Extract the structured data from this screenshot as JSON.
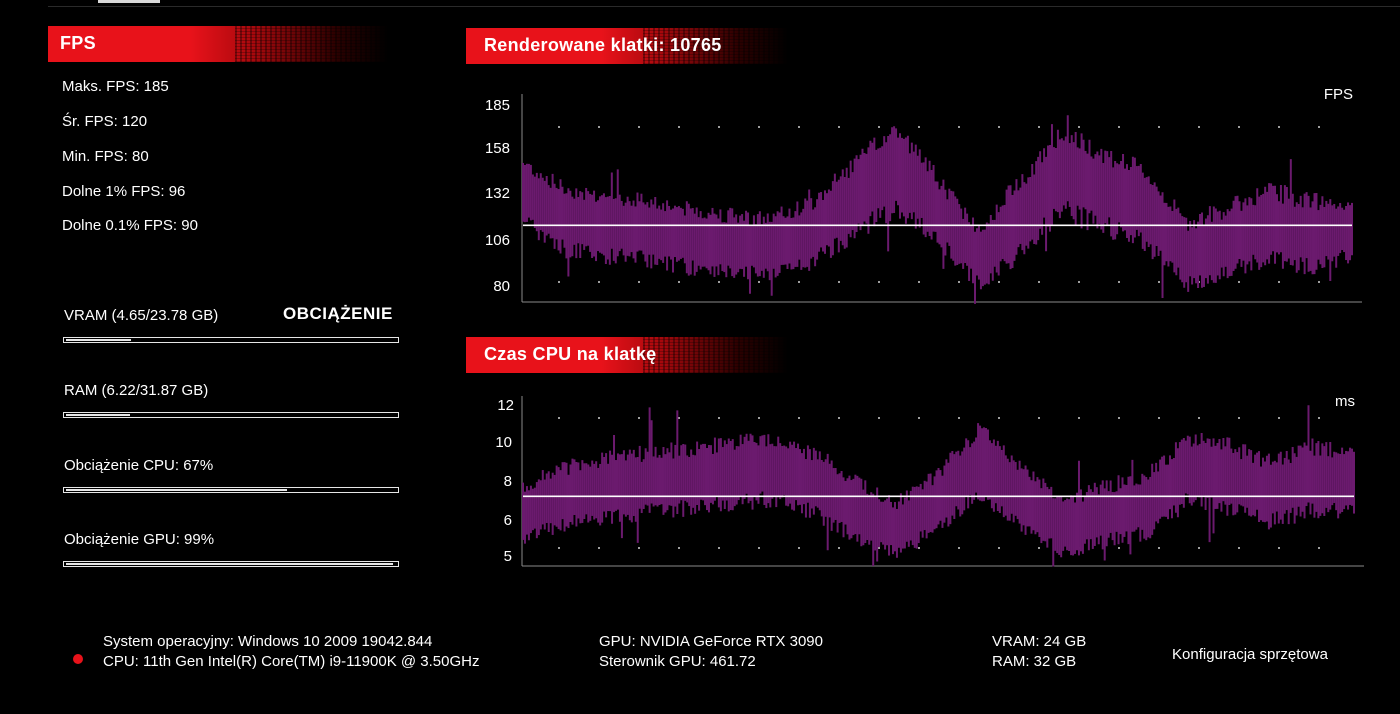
{
  "left": {
    "fps_header": "FPS",
    "stats": [
      "Maks. FPS: 185",
      "Śr. FPS: 120",
      "Min. FPS: 80",
      "Dolne 1% FPS: 96",
      "Dolne 0.1% FPS: 90"
    ],
    "load_title": "OBCIĄŻENIE",
    "bars": [
      {
        "label": "VRAM (4.65/23.78 GB)",
        "fraction": 0.196
      },
      {
        "label": "RAM (6.22/31.87 GB)",
        "fraction": 0.195
      },
      {
        "label": "Obciążenie CPU: 67%",
        "fraction": 0.67
      },
      {
        "label": "Obciążenie GPU: 99%",
        "fraction": 0.99
      }
    ]
  },
  "colors": {
    "accent": "#e8121a",
    "series": "#6b1a6e",
    "average_line": "#ffffff"
  },
  "charts": {
    "fps": {
      "header": "Renderowane klatki: 10765",
      "unit": "FPS",
      "ticks": [
        "185",
        "158",
        "132",
        "106",
        "80"
      ]
    },
    "cpu": {
      "header": "Czas CPU na klatkę",
      "unit": "ms",
      "ticks": [
        "12",
        "10",
        "8",
        "6",
        "5"
      ]
    }
  },
  "chart_data": [
    {
      "type": "area",
      "title": "Renderowane klatki: 10765",
      "ylabel": "FPS",
      "ylim": [
        80,
        185
      ],
      "yticks": [
        185,
        158,
        132,
        106,
        80
      ],
      "average": 120,
      "x": [
        0,
        5,
        10,
        15,
        20,
        25,
        30,
        35,
        40,
        45,
        50,
        55,
        60,
        65,
        70,
        75,
        80,
        85,
        90,
        95,
        100
      ],
      "series": [
        {
          "values": [
            138,
            124,
            120,
            118,
            113,
            110,
            108,
            116,
            136,
            150,
            128,
            102,
            125,
            150,
            140,
            130,
            105,
            112,
            121,
            115,
            119
          ]
        }
      ],
      "series_min": [
        118,
        102,
        99,
        97,
        93,
        90,
        90,
        96,
        110,
        124,
        108,
        84,
        100,
        122,
        114,
        106,
        84,
        90,
        98,
        92,
        100
      ],
      "series_max": [
        158,
        144,
        140,
        138,
        133,
        130,
        128,
        137,
        158,
        178,
        150,
        122,
        150,
        175,
        164,
        154,
        126,
        134,
        144,
        138,
        136
      ]
    },
    {
      "type": "area",
      "title": "Czas CPU na klatkę",
      "ylabel": "ms",
      "ylim": [
        5,
        12
      ],
      "yticks": [
        12,
        10,
        8,
        6,
        5
      ],
      "average": 8,
      "x": [
        0,
        5,
        10,
        15,
        20,
        25,
        30,
        35,
        40,
        45,
        50,
        55,
        60,
        65,
        70,
        75,
        80,
        85,
        90,
        95,
        100
      ],
      "series": [
        {
          "values": [
            7.2,
            8.0,
            8.3,
            8.6,
            8.8,
            9.0,
            9.2,
            8.6,
            7.4,
            6.6,
            7.8,
            9.6,
            8.0,
            6.6,
            7.2,
            7.6,
            9.2,
            8.8,
            8.2,
            8.8,
            8.5
          ]
        }
      ],
      "series_min": [
        5.8,
        6.4,
        6.6,
        6.9,
        7.1,
        7.3,
        7.5,
        6.9,
        5.8,
        5.2,
        6.2,
        7.8,
        6.3,
        5.2,
        5.6,
        6.0,
        7.4,
        7.0,
        6.5,
        7.0,
        7.0
      ],
      "series_max": [
        8.8,
        9.6,
        10.0,
        10.3,
        10.5,
        10.7,
        10.9,
        10.3,
        9.0,
        8.0,
        9.4,
        11.4,
        9.7,
        8.0,
        8.8,
        9.2,
        11.0,
        10.6,
        9.9,
        10.6,
        10.2
      ]
    }
  ],
  "system": {
    "os": "System operacyjny: Windows 10 2009 19042.844",
    "cpu": "CPU: 11th Gen Intel(R) Core(TM) i9-11900K @ 3.50GHz",
    "gpu": "GPU: NVIDIA GeForce RTX 3090",
    "driver": "Sterownik GPU: 461.72",
    "vram": "VRAM: 24 GB",
    "ram": "RAM: 32 GB",
    "config_link": "Konfiguracja sprzętowa"
  }
}
